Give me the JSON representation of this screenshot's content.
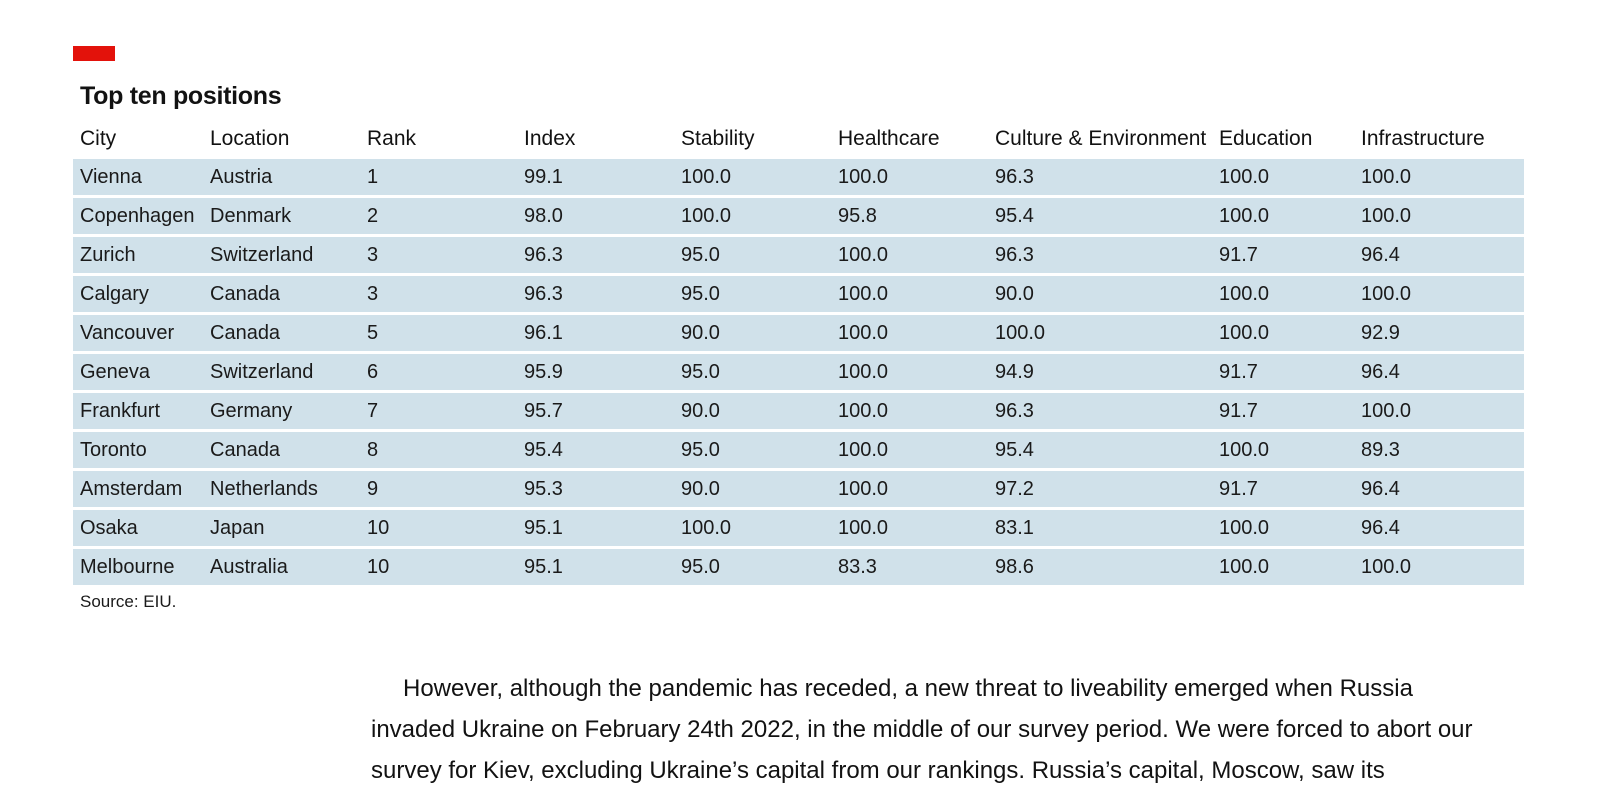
{
  "accent_color": "#e3120b",
  "row_color": "#d0e1ea",
  "table": {
    "title": "Top ten positions",
    "headers": [
      "City",
      "Location",
      "Rank",
      "Index",
      "Stability",
      "Healthcare",
      "Culture & Environment",
      "Education",
      "Infrastructure"
    ],
    "rows": [
      [
        "Vienna",
        "Austria",
        "1",
        "99.1",
        "100.0",
        "100.0",
        "96.3",
        "100.0",
        "100.0"
      ],
      [
        "Copenhagen",
        "Denmark",
        "2",
        "98.0",
        "100.0",
        "95.8",
        "95.4",
        "100.0",
        "100.0"
      ],
      [
        "Zurich",
        "Switzerland",
        "3",
        "96.3",
        "95.0",
        "100.0",
        "96.3",
        "91.7",
        "96.4"
      ],
      [
        "Calgary",
        "Canada",
        "3",
        "96.3",
        "95.0",
        "100.0",
        "90.0",
        "100.0",
        "100.0"
      ],
      [
        "Vancouver",
        "Canada",
        "5",
        "96.1",
        "90.0",
        "100.0",
        "100.0",
        "100.0",
        "92.9"
      ],
      [
        "Geneva",
        "Switzerland",
        "6",
        "95.9",
        "95.0",
        "100.0",
        "94.9",
        "91.7",
        "96.4"
      ],
      [
        "Frankfurt",
        "Germany",
        "7",
        "95.7",
        "90.0",
        "100.0",
        "96.3",
        "91.7",
        "100.0"
      ],
      [
        "Toronto",
        "Canada",
        "8",
        "95.4",
        "95.0",
        "100.0",
        "95.4",
        "100.0",
        "89.3"
      ],
      [
        "Amsterdam",
        "Netherlands",
        "9",
        "95.3",
        "90.0",
        "100.0",
        "97.2",
        "91.7",
        "96.4"
      ],
      [
        "Osaka",
        "Japan",
        "10",
        "95.1",
        "100.0",
        "100.0",
        "83.1",
        "100.0",
        "96.4"
      ],
      [
        "Melbourne",
        "Australia",
        "10",
        "95.1",
        "95.0",
        "83.3",
        "98.6",
        "100.0",
        "100.0"
      ]
    ],
    "source": "Source: EIU."
  },
  "body_text": "However, although the pandemic has receded, a new threat to liveability emerged when Russia invaded Ukraine on February 24th 2022, in the middle of our survey period. We were forced to abort our survey for Kiev, excluding Ukraine’s capital from our rankings. Russia’s capital, Moscow, saw its"
}
